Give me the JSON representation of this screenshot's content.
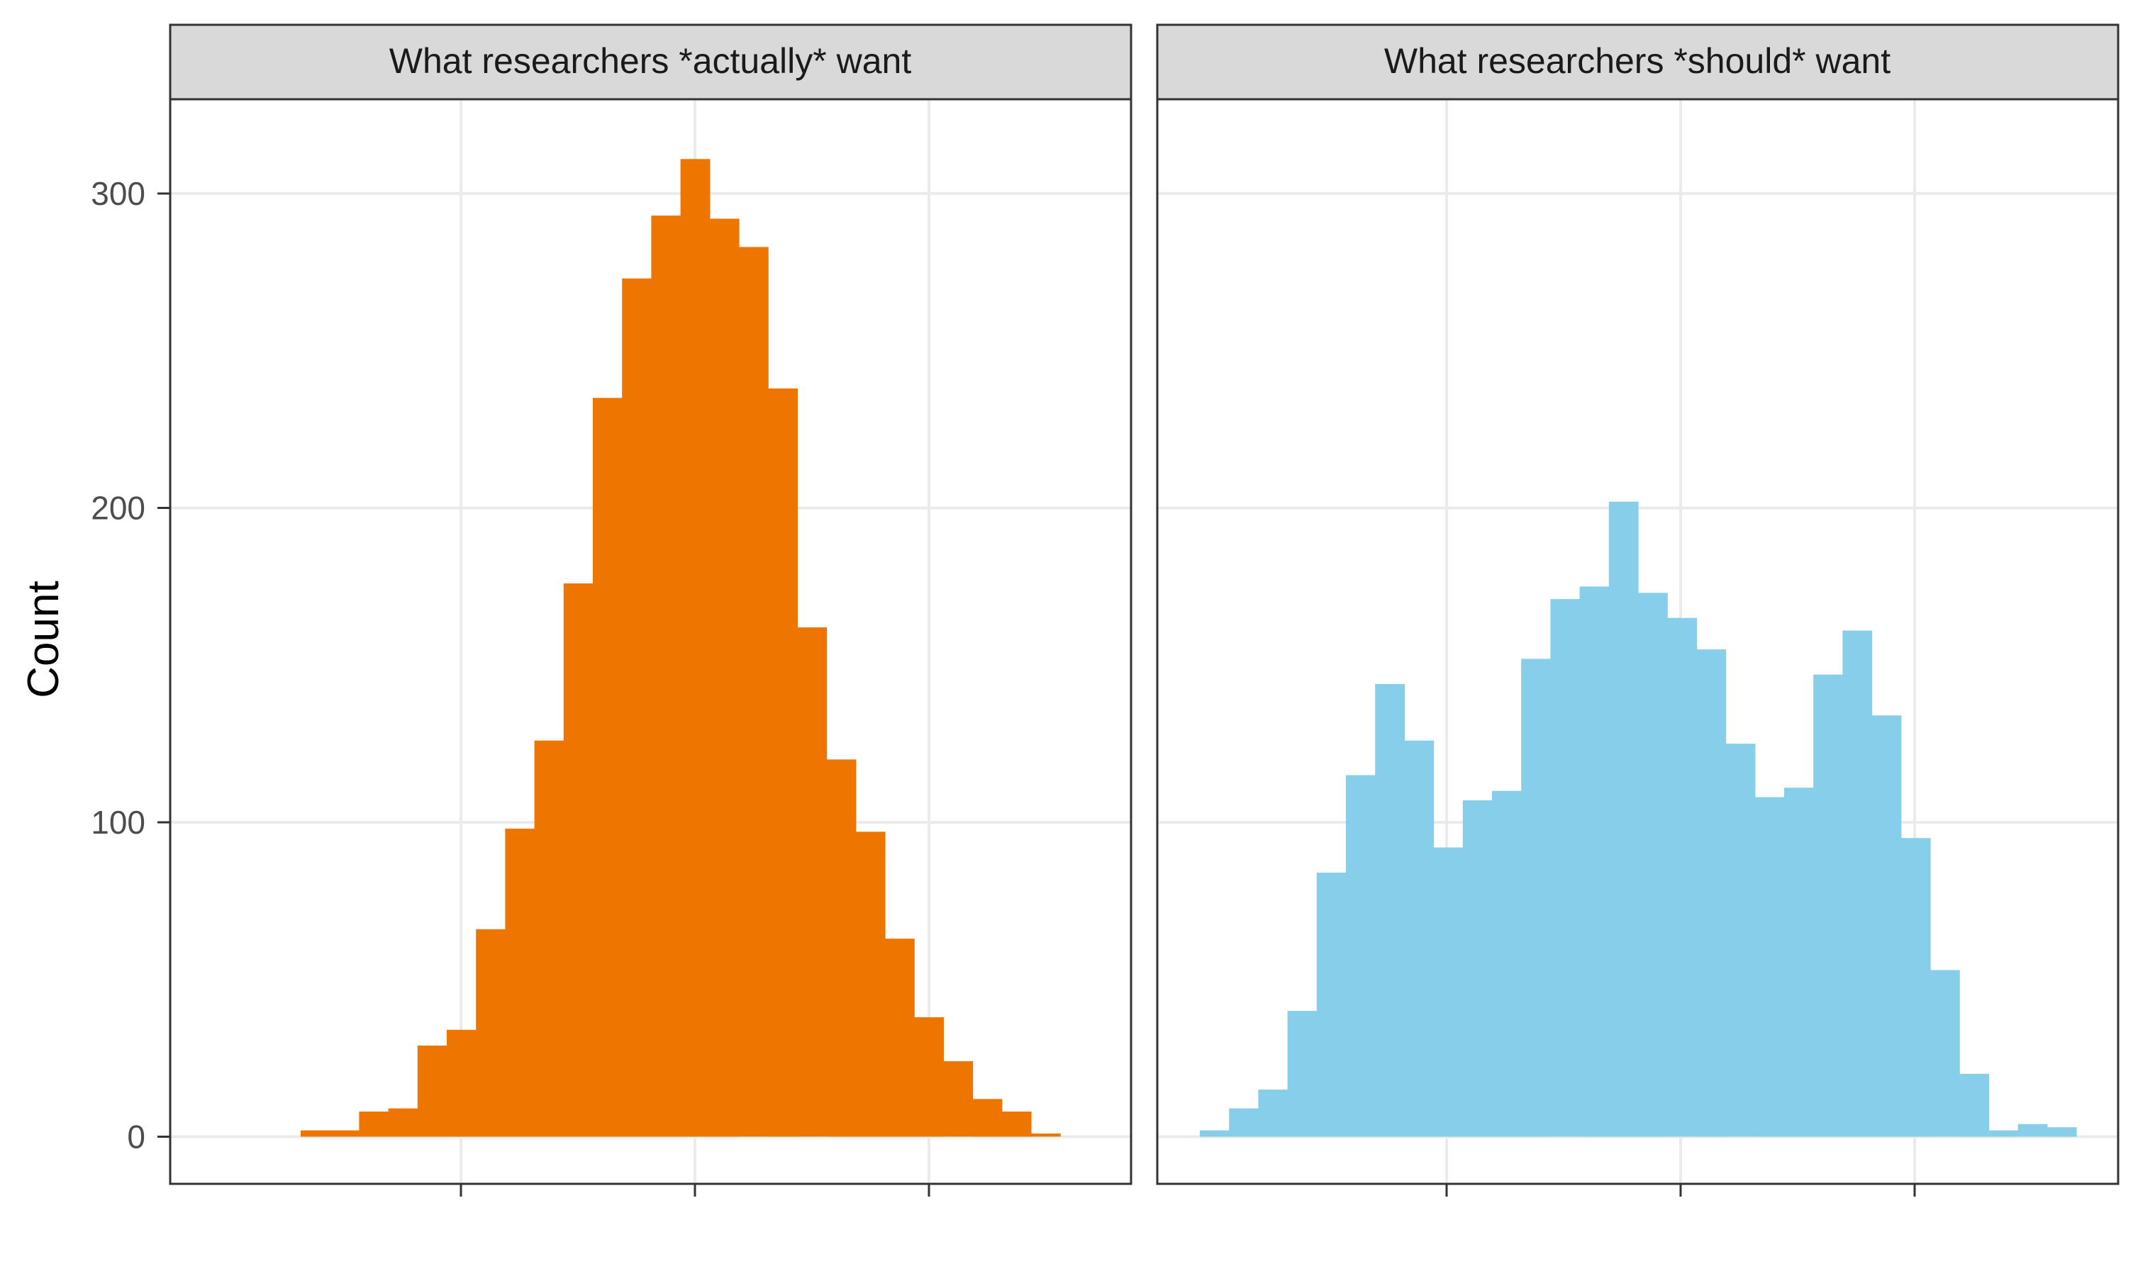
{
  "chart_data": {
    "type": "bar",
    "ylabel": "Count",
    "xlabel": "",
    "ylim": [
      -15,
      330
    ],
    "yticks": [
      0,
      100,
      200,
      300
    ],
    "grid": true,
    "legend": "none",
    "colors": {
      "strip_fill": "#d9d9d9",
      "panel_border": "#333333",
      "grid": "#ebebeb"
    },
    "panels": [
      {
        "title": "What researchers *actually* want",
        "color": "#ee7600",
        "bin_start": 0,
        "values": [
          2,
          2,
          8,
          9,
          29,
          34,
          66,
          98,
          126,
          176,
          235,
          273,
          293,
          311,
          292,
          283,
          238,
          162,
          120,
          97,
          63,
          38,
          24,
          12,
          8,
          1
        ]
      },
      {
        "title": "What researchers *should* want",
        "color": "#87ceeb",
        "bin_start": 0,
        "values": [
          2,
          9,
          15,
          40,
          84,
          115,
          144,
          126,
          92,
          107,
          110,
          152,
          171,
          175,
          202,
          173,
          165,
          155,
          125,
          108,
          111,
          147,
          161,
          134,
          95,
          53,
          20,
          2,
          4,
          3
        ]
      }
    ]
  }
}
